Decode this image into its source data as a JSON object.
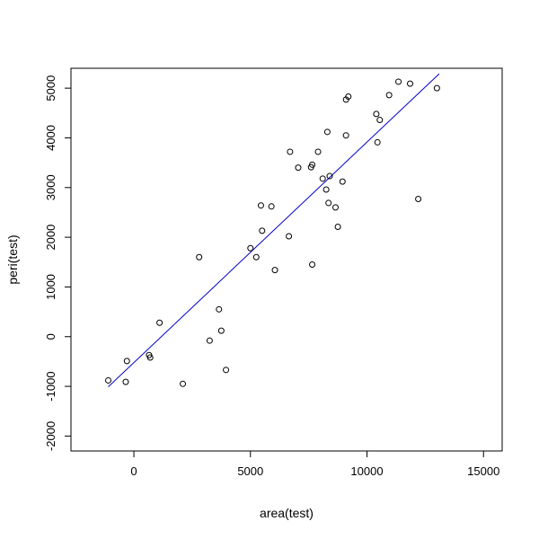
{
  "chart_data": {
    "type": "scatter",
    "title": "",
    "xlabel": "area(test)",
    "ylabel": "peri(test)",
    "xlim": [
      -2700,
      15800
    ],
    "ylim": [
      -2300,
      5400
    ],
    "xticks": [
      0,
      5000,
      10000,
      15000
    ],
    "yticks": [
      -2000,
      -1000,
      0,
      1000,
      2000,
      3000,
      4000,
      5000
    ],
    "xtick_labels": [
      "0",
      "5000",
      "10000",
      "15000"
    ],
    "ytick_labels": [
      "-2000",
      "-1000",
      "0",
      "1000",
      "2000",
      "3000",
      "4000",
      "5000"
    ],
    "grid": false,
    "legend": "none",
    "points": [
      {
        "x": -1100,
        "y": -880
      },
      {
        "x": -350,
        "y": -910
      },
      {
        "x": -300,
        "y": -490
      },
      {
        "x": 650,
        "y": -370
      },
      {
        "x": 700,
        "y": -420
      },
      {
        "x": 1100,
        "y": 280
      },
      {
        "x": 2100,
        "y": -950
      },
      {
        "x": 2800,
        "y": 1600
      },
      {
        "x": 3250,
        "y": -80
      },
      {
        "x": 3650,
        "y": 550
      },
      {
        "x": 3750,
        "y": 120
      },
      {
        "x": 3950,
        "y": -670
      },
      {
        "x": 5000,
        "y": 1780
      },
      {
        "x": 5250,
        "y": 1600
      },
      {
        "x": 5450,
        "y": 2640
      },
      {
        "x": 5500,
        "y": 2130
      },
      {
        "x": 5900,
        "y": 2620
      },
      {
        "x": 6050,
        "y": 1340
      },
      {
        "x": 6650,
        "y": 2020
      },
      {
        "x": 6700,
        "y": 3720
      },
      {
        "x": 7050,
        "y": 3400
      },
      {
        "x": 7600,
        "y": 3410
      },
      {
        "x": 7650,
        "y": 3460
      },
      {
        "x": 7650,
        "y": 1450
      },
      {
        "x": 7900,
        "y": 3720
      },
      {
        "x": 8100,
        "y": 3180
      },
      {
        "x": 8250,
        "y": 2960
      },
      {
        "x": 8300,
        "y": 4120
      },
      {
        "x": 8350,
        "y": 2690
      },
      {
        "x": 8400,
        "y": 3230
      },
      {
        "x": 8650,
        "y": 2600
      },
      {
        "x": 8750,
        "y": 2210
      },
      {
        "x": 8950,
        "y": 3120
      },
      {
        "x": 9100,
        "y": 4050
      },
      {
        "x": 9100,
        "y": 4770
      },
      {
        "x": 9200,
        "y": 4830
      },
      {
        "x": 10400,
        "y": 4480
      },
      {
        "x": 10450,
        "y": 3910
      },
      {
        "x": 10550,
        "y": 4360
      },
      {
        "x": 10950,
        "y": 4860
      },
      {
        "x": 11350,
        "y": 5130
      },
      {
        "x": 11850,
        "y": 5090
      },
      {
        "x": 12200,
        "y": 2770
      },
      {
        "x": 13000,
        "y": 5000
      }
    ],
    "fit_line": {
      "x": [
        -1100,
        13100
      ],
      "y": [
        -1010,
        5290
      ],
      "color": "#0000cc"
    },
    "colors": {
      "points": "#000000",
      "fit_line": "#0000cc",
      "axes": "#000000"
    }
  }
}
